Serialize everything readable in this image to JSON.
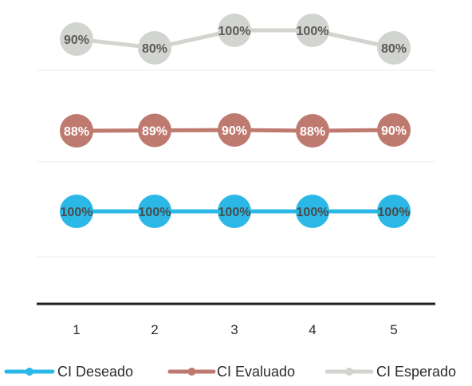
{
  "chart_data": {
    "type": "line",
    "title": "",
    "xlabel": "",
    "ylabel": "",
    "categories": [
      "1",
      "2",
      "3",
      "4",
      "5"
    ],
    "series": [
      {
        "name": "CI Deseado",
        "values": [
          100,
          100,
          100,
          100,
          100
        ],
        "labels": [
          "100%",
          "100%",
          "100%",
          "100%",
          "100%"
        ],
        "color": "#2bb8e6",
        "label_color": "#4a4a4a"
      },
      {
        "name": "CI Evaluado",
        "values": [
          88,
          89,
          90,
          88,
          90
        ],
        "labels": [
          "88%",
          "89%",
          "90%",
          "88%",
          "90%"
        ],
        "color": "#bf7a70",
        "label_color": "#ffffff"
      },
      {
        "name": "CI Esperado",
        "values": [
          90,
          80,
          100,
          100,
          80
        ],
        "labels": [
          "90%",
          "80%",
          "100%",
          "100%",
          "80%"
        ],
        "color": "#d2d5cf",
        "label_color": "#5a5a5a"
      }
    ],
    "grid": true,
    "legend_position": "bottom"
  }
}
